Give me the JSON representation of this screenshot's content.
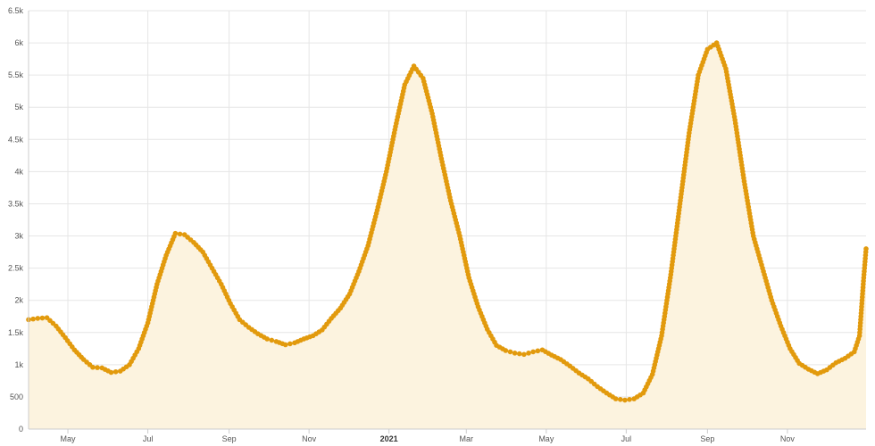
{
  "colors": {
    "line": "#e29a0d",
    "marker": "#e29a0d",
    "area": "#fcf3df",
    "grid": "#e6e6e6",
    "axis": "#cccccc",
    "label": "#555555"
  },
  "chart_data": {
    "type": "line",
    "title": "",
    "xlabel": "",
    "ylabel": "",
    "area_fill": true,
    "markers": true,
    "grid": true,
    "legend": "none",
    "x_range": [
      "2020-04-01",
      "2021-12-31"
    ],
    "ylim": [
      0,
      6500
    ],
    "y_ticks": [
      {
        "value": 0,
        "label": "0"
      },
      {
        "value": 500,
        "label": "500"
      },
      {
        "value": 1000,
        "label": "1k"
      },
      {
        "value": 1500,
        "label": "1.5k"
      },
      {
        "value": 2000,
        "label": "2k"
      },
      {
        "value": 2500,
        "label": "2.5k"
      },
      {
        "value": 3000,
        "label": "3k"
      },
      {
        "value": 3500,
        "label": "3.5k"
      },
      {
        "value": 4000,
        "label": "4k"
      },
      {
        "value": 4500,
        "label": "4.5k"
      },
      {
        "value": 5000,
        "label": "5k"
      },
      {
        "value": 5500,
        "label": "5.5k"
      },
      {
        "value": 6000,
        "label": "6k"
      },
      {
        "value": 6500,
        "label": "6.5k"
      }
    ],
    "x_ticks": [
      {
        "date": "2020-05-01",
        "label": "May",
        "bold": false
      },
      {
        "date": "2020-07-01",
        "label": "Jul",
        "bold": false
      },
      {
        "date": "2020-09-01",
        "label": "Sep",
        "bold": false
      },
      {
        "date": "2020-11-01",
        "label": "Nov",
        "bold": false
      },
      {
        "date": "2021-01-01",
        "label": "2021",
        "bold": true
      },
      {
        "date": "2021-03-01",
        "label": "Mar",
        "bold": false
      },
      {
        "date": "2021-05-01",
        "label": "May",
        "bold": false
      },
      {
        "date": "2021-07-01",
        "label": "Jul",
        "bold": false
      },
      {
        "date": "2021-09-01",
        "label": "Sep",
        "bold": false
      },
      {
        "date": "2021-11-01",
        "label": "Nov",
        "bold": false
      }
    ],
    "series": [
      {
        "values": [
          [
            "2020-04-01",
            1700
          ],
          [
            "2020-04-08",
            1720
          ],
          [
            "2020-04-15",
            1730
          ],
          [
            "2020-04-22",
            1600
          ],
          [
            "2020-04-29",
            1420
          ],
          [
            "2020-05-06",
            1230
          ],
          [
            "2020-05-13",
            1080
          ],
          [
            "2020-05-20",
            960
          ],
          [
            "2020-05-27",
            950
          ],
          [
            "2020-06-03",
            880
          ],
          [
            "2020-06-10",
            900
          ],
          [
            "2020-06-17",
            1000
          ],
          [
            "2020-06-24",
            1250
          ],
          [
            "2020-07-01",
            1650
          ],
          [
            "2020-07-08",
            2250
          ],
          [
            "2020-07-15",
            2700
          ],
          [
            "2020-07-22",
            3040
          ],
          [
            "2020-07-29",
            3020
          ],
          [
            "2020-08-05",
            2900
          ],
          [
            "2020-08-12",
            2750
          ],
          [
            "2020-08-19",
            2500
          ],
          [
            "2020-08-26",
            2250
          ],
          [
            "2020-09-02",
            1950
          ],
          [
            "2020-09-09",
            1700
          ],
          [
            "2020-09-16",
            1580
          ],
          [
            "2020-09-23",
            1480
          ],
          [
            "2020-09-30",
            1400
          ],
          [
            "2020-10-07",
            1360
          ],
          [
            "2020-10-14",
            1310
          ],
          [
            "2020-10-21",
            1340
          ],
          [
            "2020-10-28",
            1400
          ],
          [
            "2020-11-04",
            1450
          ],
          [
            "2020-11-11",
            1540
          ],
          [
            "2020-11-18",
            1720
          ],
          [
            "2020-11-25",
            1880
          ],
          [
            "2020-12-02",
            2100
          ],
          [
            "2020-12-09",
            2450
          ],
          [
            "2020-12-16",
            2850
          ],
          [
            "2020-12-23",
            3400
          ],
          [
            "2020-12-30",
            4000
          ],
          [
            "2021-01-06",
            4700
          ],
          [
            "2021-01-13",
            5350
          ],
          [
            "2021-01-20",
            5640
          ],
          [
            "2021-01-27",
            5450
          ],
          [
            "2021-02-03",
            4900
          ],
          [
            "2021-02-10",
            4200
          ],
          [
            "2021-02-17",
            3550
          ],
          [
            "2021-02-24",
            3000
          ],
          [
            "2021-03-03",
            2350
          ],
          [
            "2021-03-10",
            1900
          ],
          [
            "2021-03-17",
            1550
          ],
          [
            "2021-03-24",
            1300
          ],
          [
            "2021-03-31",
            1220
          ],
          [
            "2021-04-07",
            1180
          ],
          [
            "2021-04-14",
            1160
          ],
          [
            "2021-04-21",
            1200
          ],
          [
            "2021-04-28",
            1230
          ],
          [
            "2021-05-05",
            1150
          ],
          [
            "2021-05-12",
            1080
          ],
          [
            "2021-05-19",
            980
          ],
          [
            "2021-05-26",
            870
          ],
          [
            "2021-06-02",
            780
          ],
          [
            "2021-06-09",
            660
          ],
          [
            "2021-06-16",
            560
          ],
          [
            "2021-06-23",
            470
          ],
          [
            "2021-06-30",
            450
          ],
          [
            "2021-07-07",
            470
          ],
          [
            "2021-07-14",
            560
          ],
          [
            "2021-07-21",
            850
          ],
          [
            "2021-07-28",
            1450
          ],
          [
            "2021-08-04",
            2400
          ],
          [
            "2021-08-11",
            3500
          ],
          [
            "2021-08-18",
            4600
          ],
          [
            "2021-08-25",
            5500
          ],
          [
            "2021-09-01",
            5900
          ],
          [
            "2021-09-08",
            6000
          ],
          [
            "2021-09-15",
            5600
          ],
          [
            "2021-09-22",
            4800
          ],
          [
            "2021-09-29",
            3850
          ],
          [
            "2021-10-06",
            3000
          ],
          [
            "2021-10-13",
            2500
          ],
          [
            "2021-10-20",
            2000
          ],
          [
            "2021-10-27",
            1600
          ],
          [
            "2021-11-03",
            1250
          ],
          [
            "2021-11-10",
            1020
          ],
          [
            "2021-11-17",
            930
          ],
          [
            "2021-11-24",
            860
          ],
          [
            "2021-12-01",
            920
          ],
          [
            "2021-12-08",
            1030
          ],
          [
            "2021-12-15",
            1100
          ],
          [
            "2021-12-22",
            1200
          ],
          [
            "2021-12-26",
            1450
          ],
          [
            "2021-12-29",
            2300
          ],
          [
            "2021-12-31",
            2800
          ]
        ]
      }
    ]
  }
}
